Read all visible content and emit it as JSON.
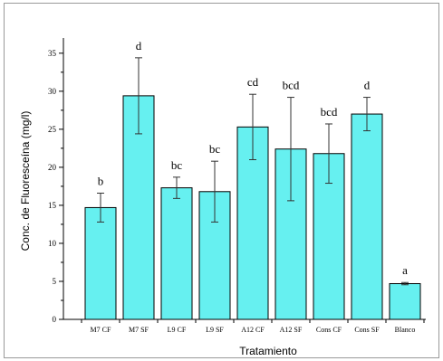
{
  "chart_data": {
    "type": "bar",
    "title": "",
    "xlabel": "Tratamiento",
    "ylabel": "Conc. de Fluoresceína (mg/l)",
    "ylim": [
      0,
      37
    ],
    "yticks": [
      0,
      5,
      10,
      15,
      20,
      25,
      30,
      35
    ],
    "categories": [
      "M7 CF",
      "M7 SF",
      "L9 CF",
      "L9 SF",
      "A12 CF",
      "A12 SF",
      "Cons CF",
      "Cons SF",
      "Blanco"
    ],
    "values": [
      14.7,
      29.4,
      17.3,
      16.8,
      25.3,
      22.4,
      21.8,
      27.0,
      4.7
    ],
    "errors": [
      1.9,
      5.0,
      1.4,
      4.0,
      4.3,
      6.8,
      3.9,
      2.2,
      0.15
    ],
    "significance": [
      "b",
      "d",
      "bc",
      "bc",
      "cd",
      "bcd",
      "bcd",
      "d",
      "a"
    ],
    "bar_color": "#66f0f0",
    "bar_edge_color": "#000000",
    "grid": false,
    "legend": "none"
  }
}
